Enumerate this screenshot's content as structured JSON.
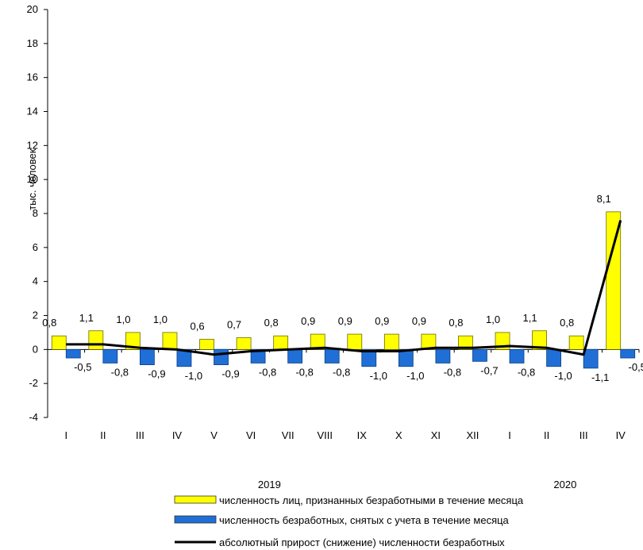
{
  "chart_data": {
    "type": "bar",
    "ylabel": "тыс. человек",
    "ylim": [
      -4,
      20
    ],
    "yticks": [
      -4,
      -2,
      0,
      2,
      4,
      6,
      8,
      10,
      12,
      14,
      16,
      18,
      20
    ],
    "categories": [
      "I",
      "II",
      "III",
      "IV",
      "V",
      "VI",
      "VII",
      "VIII",
      "IX",
      "X",
      "XI",
      "XII",
      "I",
      "II",
      "III",
      "IV"
    ],
    "year_labels": [
      {
        "label": "2019",
        "category_index": 5.5
      },
      {
        "label": "2020",
        "category_index": 13.5
      }
    ],
    "series": [
      {
        "name": "численность лиц, признанных безработными в течение месяца",
        "kind": "bar",
        "color": "#ffff00",
        "values": [
          0.8,
          1.1,
          1.0,
          1.0,
          0.6,
          0.7,
          0.8,
          0.9,
          0.9,
          0.9,
          0.9,
          0.8,
          1.0,
          1.1,
          0.8,
          8.1
        ],
        "labels": [
          "0,8",
          "1,1",
          "1,0",
          "1,0",
          "0,6",
          "0,7",
          "0,8",
          "0,9",
          "0,9",
          "0,9",
          "0,9",
          "0,8",
          "1,0",
          "1,1",
          "0,8",
          "8,1"
        ]
      },
      {
        "name": "численность безработных, снятых с учета в течение месяца",
        "kind": "bar",
        "color": "#1f6fd6",
        "values": [
          -0.5,
          -0.8,
          -0.9,
          -1.0,
          -0.9,
          -0.8,
          -0.8,
          -0.8,
          -1.0,
          -1.0,
          -0.8,
          -0.7,
          -0.8,
          -1.0,
          -1.1,
          -0.5
        ],
        "labels": [
          "-0,5",
          "-0,8",
          "-0,9",
          "-1,0",
          "-0,9",
          "-0,8",
          "-0,8",
          "-0,8",
          "-1,0",
          "-1,0",
          "-0,8",
          "-0,7",
          "-0,8",
          "-1,0",
          "-1,1",
          "-0,5"
        ]
      },
      {
        "name": "абсолютный прирост (снижение) численности безработных",
        "kind": "line",
        "color": "#000000",
        "values": [
          0.3,
          0.3,
          0.1,
          -0.0,
          -0.3,
          -0.1,
          0.0,
          0.1,
          -0.1,
          -0.1,
          0.1,
          0.1,
          0.2,
          0.1,
          -0.3,
          7.6
        ]
      }
    ],
    "grid": false,
    "legend_placement": "bottom"
  }
}
